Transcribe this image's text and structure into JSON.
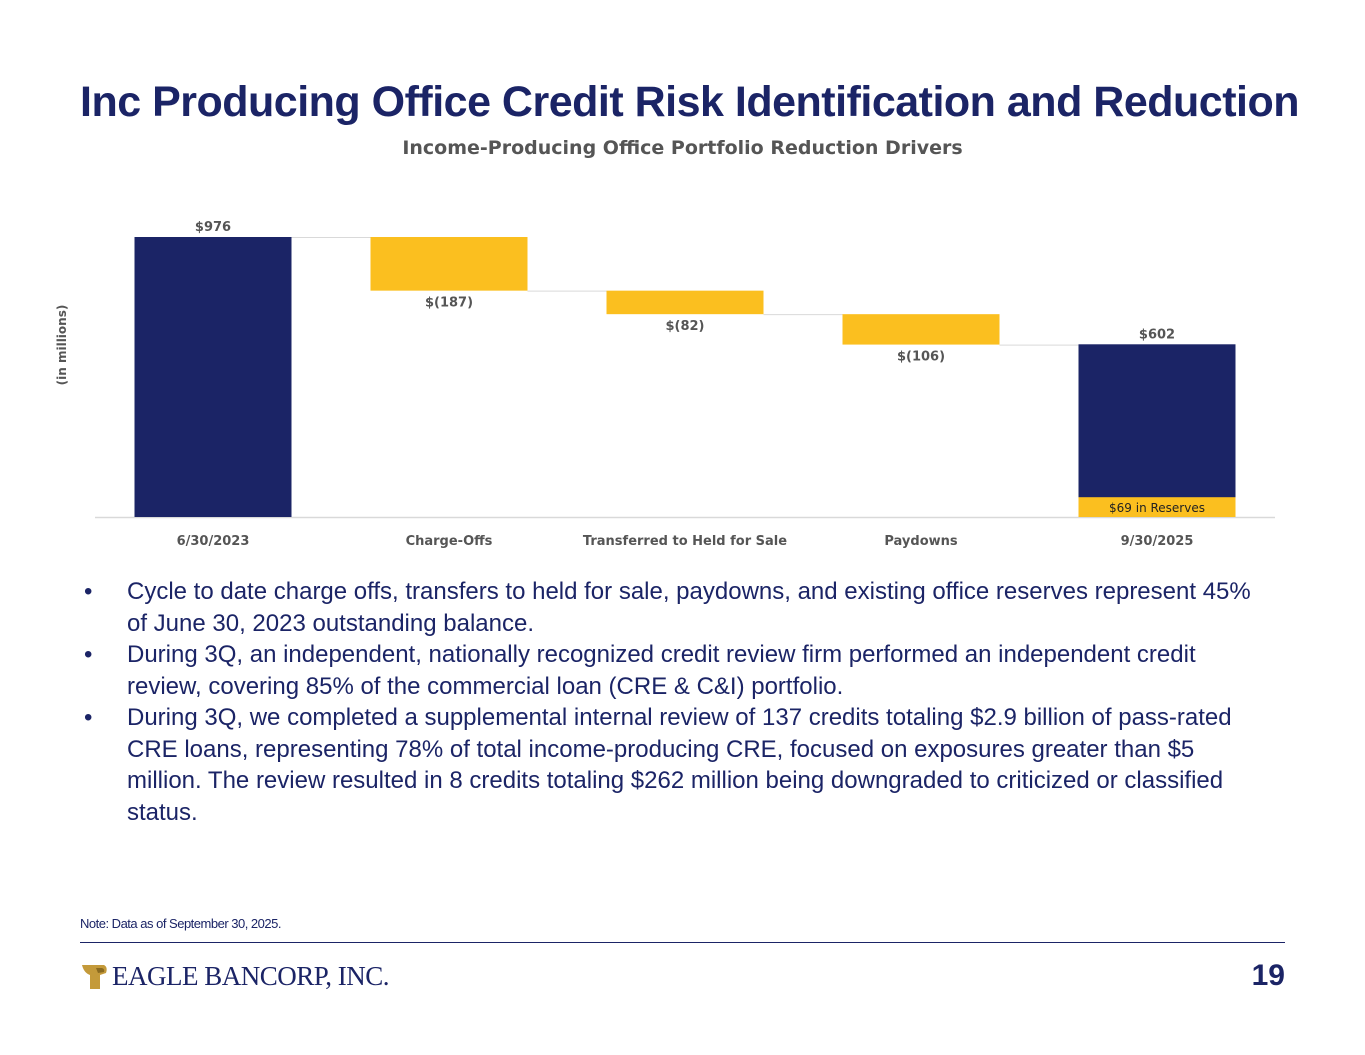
{
  "slide": {
    "title": "Inc Producing Office Credit Risk Identification and Reduction",
    "page_number": "19",
    "note": "Note: Data as of September 30, 2025.",
    "bullets": [
      "Cycle to date charge offs, transfers to held for sale, paydowns, and existing office reserves represent 45% of June 30, 2023 outstanding balance.",
      "During 3Q, an independent, nationally recognized credit review firm performed an independent credit review, covering 85% of the commercial loan (CRE & C&I) portfolio.",
      "During 3Q, we completed a supplemental internal review of 137 credits totaling $2.9 billion of pass-rated CRE loans, representing 78% of total income-producing CRE, focused on exposures greater than $5 million. The review resulted in 8 credits totaling $262 million being downgraded to criticized or classified status."
    ],
    "logo_text": "EAGLE BANCORP, INC."
  },
  "colors": {
    "navy": "#1b2466",
    "gold": "#fbbf1f",
    "axis": "#d9d9d9",
    "label": "#555555"
  },
  "chart_data": {
    "type": "waterfall",
    "title": "Income-Producing Office Portfolio Reduction Drivers",
    "ylabel": "(in millions)",
    "xlabel": "",
    "ylim": [
      0,
      976
    ],
    "categories": [
      "6/30/2023",
      "Charge-Offs",
      "Transferred to Held for Sale",
      "Paydowns",
      "9/30/2025"
    ],
    "steps": [
      {
        "category": "6/30/2023",
        "kind": "total",
        "value": 976,
        "label": "$976"
      },
      {
        "category": "Charge-Offs",
        "kind": "decrease",
        "value": -187,
        "label": "$(187)"
      },
      {
        "category": "Transferred to Held for Sale",
        "kind": "decrease",
        "value": -82,
        "label": "$(82)"
      },
      {
        "category": "Paydowns",
        "kind": "decrease",
        "value": -106,
        "label": "$(106)"
      },
      {
        "category": "9/30/2025",
        "kind": "total",
        "value": 602,
        "label": "$602"
      }
    ],
    "reserve": {
      "category": "9/30/2025",
      "value": 69,
      "label": "$69 in Reserves"
    }
  }
}
